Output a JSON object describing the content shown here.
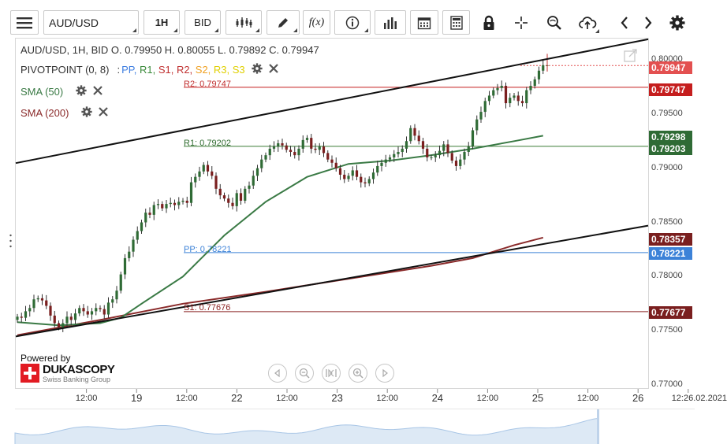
{
  "toolbar": {
    "symbol": "AUD/USD",
    "interval": "1H",
    "side": "BID",
    "fx_label": "f(x)",
    "icons": [
      "menu-icon",
      "candles-icon",
      "draw-pen-icon",
      "function-icon",
      "info-icon",
      "volume-bars-icon",
      "calendar-icon",
      "calculator-icon",
      "lock-icon",
      "crosshair-icon",
      "zoom-icon",
      "upload-cloud-icon",
      "chevron-left-icon",
      "chevron-right-icon",
      "gear-icon"
    ]
  },
  "header": {
    "ohlc_text": "AUD/USD, 1H, BID    O. 0.79950 H. 0.80055 L. 0.79892 C. 0.79947"
  },
  "indicators": {
    "pivot": {
      "name": "PIVOTPOINT (0, 8)",
      "separator": ":",
      "levels": [
        {
          "name": "PP",
          "color": "#3d7de0"
        },
        {
          "name": "R1",
          "color": "#3a8a3a"
        },
        {
          "name": "S1",
          "color": "#c03030"
        },
        {
          "name": "R2",
          "color": "#c03030"
        },
        {
          "name": "S2",
          "color": "#f0a020"
        },
        {
          "name": "R3",
          "color": "#e0d000"
        },
        {
          "name": "S3",
          "color": "#e0d000"
        }
      ]
    },
    "sma50": {
      "label": "SMA (50)",
      "color": "#3a7a45"
    },
    "sma200": {
      "label": "SMA (200)",
      "color": "#8a2a2a"
    }
  },
  "level_labels": {
    "r2": "R2: 0.79747",
    "r1": "R1: 0.79202",
    "pp": "PP: 0.78221",
    "s1": "S1: 0.77676"
  },
  "price_labels": {
    "last": {
      "text": "0.79947",
      "color": "#e35050"
    },
    "r2": {
      "text": "0.79747",
      "color": "#c51e1e"
    },
    "sma50": {
      "text": "0.79298",
      "color": "#2f6b35"
    },
    "r1": {
      "text": "0.79203",
      "color": "#2f6b35"
    },
    "sma200": {
      "text": "0.78357",
      "color": "#7a1f1f"
    },
    "pp": {
      "text": "0.78221",
      "color": "#3c82d8"
    },
    "s1": {
      "text": "0.77677",
      "color": "#7a1f1f"
    }
  },
  "branding": {
    "powered_by": "Powered by",
    "name": "DUKASCOPY",
    "tagline": "Swiss Banking Group"
  },
  "chart_data": {
    "type": "candlestick",
    "symbol": "AUD/USD",
    "interval": "1H",
    "price_type": "BID",
    "y_ticks": [
      "0.80000",
      "0.79500",
      "0.79000",
      "0.78500",
      "0.78000",
      "0.77500",
      "0.77000"
    ],
    "ylim": [
      0.7695,
      0.802
    ],
    "x_labels": [
      {
        "label": "12:00",
        "day": false,
        "h": 12
      },
      {
        "label": "19",
        "day": true,
        "h": 24
      },
      {
        "label": "12:00",
        "day": false,
        "h": 36
      },
      {
        "label": "22",
        "day": true,
        "h": 48
      },
      {
        "label": "12:00",
        "day": false,
        "h": 60
      },
      {
        "label": "23",
        "day": true,
        "h": 72
      },
      {
        "label": "12:00",
        "day": false,
        "h": 84
      },
      {
        "label": "24",
        "day": true,
        "h": 96
      },
      {
        "label": "12:00",
        "day": false,
        "h": 108
      },
      {
        "label": "25",
        "day": true,
        "h": 120
      },
      {
        "label": "12:00",
        "day": false,
        "h": 132
      },
      {
        "label": "26",
        "day": true,
        "h": 144
      },
      {
        "label": "12:26.02.2021",
        "day": false,
        "h": 156
      }
    ],
    "pivot_levels": {
      "R2": 0.79747,
      "R1": 0.79202,
      "PP": 0.78221,
      "S1": 0.77676
    },
    "last_price": 0.79947,
    "sma50_value": 0.79298,
    "sma200_value": 0.78357,
    "closes": [
      0.7763,
      0.7762,
      0.7768,
      0.7771,
      0.7779,
      0.778,
      0.7778,
      0.7773,
      0.7764,
      0.7757,
      0.7753,
      0.7757,
      0.7763,
      0.776,
      0.7766,
      0.7771,
      0.7768,
      0.7765,
      0.7768,
      0.7771,
      0.777,
      0.7765,
      0.7776,
      0.7779,
      0.7787,
      0.7802,
      0.7817,
      0.7823,
      0.7834,
      0.7842,
      0.785,
      0.7859,
      0.7857,
      0.7866,
      0.7867,
      0.7863,
      0.7867,
      0.7868,
      0.7866,
      0.7869,
      0.787,
      0.7868,
      0.7887,
      0.7892,
      0.7897,
      0.7903,
      0.7897,
      0.7893,
      0.7881,
      0.7875,
      0.7872,
      0.7868,
      0.7865,
      0.7877,
      0.787,
      0.7881,
      0.7884,
      0.7893,
      0.79,
      0.7908,
      0.7912,
      0.7918,
      0.792,
      0.7923,
      0.7921,
      0.7917,
      0.7915,
      0.7912,
      0.7918,
      0.7926,
      0.7928,
      0.7918,
      0.7917,
      0.792,
      0.7914,
      0.7908,
      0.7905,
      0.79,
      0.7894,
      0.789,
      0.7893,
      0.7898,
      0.7892,
      0.7887,
      0.7886,
      0.789,
      0.7896,
      0.7902,
      0.7905,
      0.7908,
      0.791,
      0.7913,
      0.7915,
      0.7918,
      0.7925,
      0.7937,
      0.793,
      0.7925,
      0.7918,
      0.791,
      0.791,
      0.7912,
      0.7916,
      0.7922,
      0.7914,
      0.7907,
      0.7902,
      0.7908,
      0.7915,
      0.792,
      0.7935,
      0.7945,
      0.7952,
      0.7962,
      0.7967,
      0.7972,
      0.7974,
      0.7976,
      0.796,
      0.7965,
      0.7967,
      0.7962,
      0.796,
      0.7972,
      0.7976,
      0.7982,
      0.799,
      0.7995,
      0.7995
    ],
    "closes_units": "price per candle, hourly, left to right (approx.)",
    "sma50": [
      [
        0,
        0.7758
      ],
      [
        10,
        0.7755
      ],
      [
        20,
        0.7757
      ],
      [
        25,
        0.7762
      ],
      [
        30,
        0.7775
      ],
      [
        40,
        0.78
      ],
      [
        50,
        0.7838
      ],
      [
        60,
        0.7869
      ],
      [
        70,
        0.7892
      ],
      [
        80,
        0.7904
      ],
      [
        90,
        0.7907
      ],
      [
        100,
        0.7912
      ],
      [
        110,
        0.7918
      ],
      [
        120,
        0.7925
      ],
      [
        127,
        0.793
      ]
    ],
    "sma200": [
      [
        0,
        0.7746
      ],
      [
        20,
        0.776
      ],
      [
        40,
        0.7775
      ],
      [
        60,
        0.7786
      ],
      [
        80,
        0.7798
      ],
      [
        100,
        0.781
      ],
      [
        110,
        0.7817
      ],
      [
        120,
        0.7829
      ],
      [
        127,
        0.7836
      ]
    ],
    "trendlines": [
      {
        "name": "upper-channel",
        "from": [
          0,
          0.7905
        ],
        "to": [
          127,
          0.8
        ]
      },
      {
        "name": "lower-channel",
        "from": [
          0,
          0.7745
        ],
        "to": [
          127,
          0.783
        ]
      }
    ]
  }
}
